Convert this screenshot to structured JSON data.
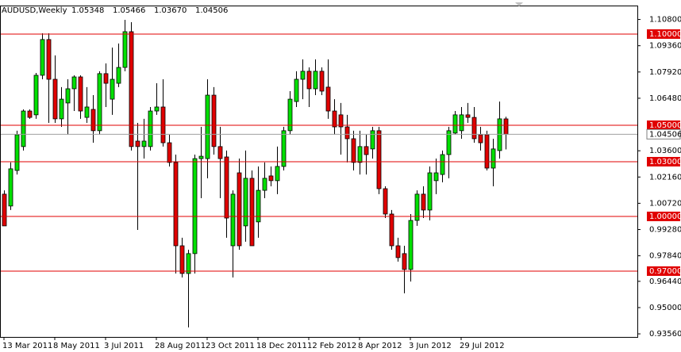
{
  "chart_data": {
    "type": "candlestick",
    "title": "AUDUSD,Weekly",
    "header_values": [
      {
        "value": 1.05348,
        "label": "1.05348"
      },
      {
        "value": 1.05466,
        "label": "1.05466"
      },
      {
        "value": 1.0367,
        "label": "1.03670"
      },
      {
        "value": 1.04506,
        "label": "1.04506"
      }
    ],
    "categories": [
      "13 Mar 2011",
      null,
      null,
      null,
      null,
      null,
      null,
      null,
      "8 May 2011",
      null,
      null,
      null,
      null,
      null,
      null,
      null,
      "3 Jul 2011",
      null,
      null,
      null,
      null,
      null,
      null,
      null,
      "28 Aug 2011",
      null,
      null,
      null,
      null,
      null,
      null,
      null,
      "23 Oct 2011",
      null,
      null,
      null,
      null,
      null,
      null,
      null,
      "18 Dec 2011",
      null,
      null,
      null,
      null,
      null,
      null,
      null,
      "12 Feb 2012",
      null,
      null,
      null,
      null,
      null,
      null,
      null,
      "8 Apr 2012",
      null,
      null,
      null,
      null,
      null,
      null,
      null,
      "3 Jun 2012",
      null,
      null,
      null,
      null,
      null,
      null,
      null,
      "29 Jul 2012",
      null,
      null,
      null,
      null,
      null,
      null,
      null
    ],
    "open": [
      1.0122,
      1.0057,
      1.0252,
      1.0383,
      1.0578,
      1.0557,
      1.0774,
      1.097,
      1.0752,
      1.0535,
      1.0622,
      1.07,
      1.0765,
      1.0543,
      1.0587,
      1.047,
      1.0783,
      1.0643,
      1.073,
      1.0817,
      1.1013,
      1.0413,
      1.0383,
      1.0383,
      1.0578,
      1.06,
      1.0404,
      1.0296,
      0.9839,
      0.9687,
      0.9796,
      1.0317,
      1.0317,
      1.0665,
      1.0383,
      1.0326,
      0.9839,
      1.0239,
      0.9948,
      1.0209,
      0.997,
      1.0143,
      1.0222,
      1.0196,
      1.0274,
      1.047,
      1.063,
      1.0752,
      1.0796,
      1.07,
      1.0796,
      1.0709,
      1.0578,
      1.0557,
      1.0491,
      1.0426,
      1.0296,
      1.0383,
      1.037,
      1.047,
      1.0152,
      1.0013,
      0.9839,
      0.9796,
      0.9709,
      0.9978,
      1.0122,
      1.0035,
      1.0196,
      1.023,
      1.0339,
      1.0457,
      1.047,
      1.0557,
      1.0543,
      1.0448,
      1.0448,
      1.0265,
      1.0361,
      1.05348
    ],
    "high": [
      1.0143,
      1.0296,
      1.047,
      1.0587,
      1.0587,
      1.0787,
      1.1004,
      1.1004,
      1.0883,
      1.0709,
      1.0752,
      1.0774,
      1.0774,
      1.0709,
      1.0665,
      1.0796,
      1.0839,
      1.0926,
      1.0948,
      1.1078,
      1.1065,
      1.0513,
      1.0535,
      1.06,
      1.073,
      1.0752,
      1.0448,
      1.0339,
      0.9883,
      0.9817,
      1.0339,
      1.0491,
      1.0752,
      1.0709,
      1.0491,
      1.0361,
      1.0143,
      1.0317,
      1.0361,
      1.0252,
      1.0274,
      1.0296,
      1.0274,
      1.0383,
      1.0491,
      1.0687,
      1.0796,
      1.0861,
      1.0817,
      1.0861,
      1.0817,
      1.0861,
      1.0643,
      1.0622,
      1.0557,
      1.047,
      1.047,
      1.0448,
      1.0491,
      1.0491,
      1.0165,
      1.0035,
      0.9883,
      0.9839,
      1.0013,
      1.0143,
      1.0165,
      1.0274,
      1.0317,
      1.0361,
      1.0491,
      1.0578,
      1.06,
      1.0622,
      1.06,
      1.0491,
      1.047,
      1.0426,
      1.063,
      1.05466
    ],
    "low": [
      0.9948,
      1.0035,
      1.023,
      1.0361,
      1.0535,
      1.0535,
      1.0752,
      1.0513,
      1.0513,
      1.0491,
      1.0448,
      1.0578,
      1.0535,
      1.0513,
      1.0404,
      1.0448,
      1.06,
      1.0557,
      1.0709,
      1.0796,
      1.0361,
      0.9926,
      1.0317,
      1.0361,
      1.0557,
      1.0383,
      1.0274,
      0.9687,
      0.9665,
      0.9391,
      0.9687,
      1.01,
      1.0209,
      1.0339,
      1.01,
      0.9883,
      0.9665,
      0.9817,
      0.9861,
      0.9839,
      0.9883,
      1.01,
      1.0165,
      1.0122,
      1.0252,
      1.0448,
      1.06,
      1.0643,
      1.06,
      1.0665,
      1.0665,
      1.0535,
      1.0448,
      1.0339,
      1.0296,
      1.0252,
      1.023,
      1.023,
      1.0317,
      1.0122,
      0.9991,
      0.9817,
      0.9752,
      0.9578,
      0.9643,
      0.9948,
      0.9991,
      0.9978,
      1.0122,
      1.0187,
      1.0209,
      1.0448,
      1.0426,
      1.0513,
      1.0404,
      1.0361,
      1.0252,
      1.0165,
      1.0317,
      1.0367
    ],
    "close": [
      0.9948,
      1.0261,
      1.0448,
      1.0578,
      1.0543,
      1.0774,
      1.097,
      1.0752,
      1.0535,
      1.0643,
      1.07,
      1.0765,
      1.0578,
      1.06,
      1.047,
      1.0783,
      1.073,
      1.0752,
      1.0817,
      1.1013,
      1.0383,
      1.0383,
      1.0413,
      1.0578,
      1.06,
      1.0404,
      1.0296,
      0.9839,
      0.9687,
      0.9796,
      1.0317,
      1.033,
      1.0665,
      1.0383,
      1.0317,
      0.9991,
      1.0122,
      0.9839,
      1.0209,
      0.9839,
      1.0143,
      1.0209,
      1.0196,
      1.0274,
      1.047,
      1.0643,
      1.0752,
      1.0796,
      1.07,
      1.0796,
      1.0687,
      1.0578,
      1.0491,
      1.0491,
      1.0426,
      1.0296,
      1.0383,
      1.0339,
      1.047,
      1.0152,
      1.0013,
      0.9839,
      0.9774,
      0.9709,
      0.9978,
      1.0122,
      1.0035,
      1.0239,
      1.0239,
      1.0339,
      1.047,
      1.0557,
      1.0557,
      1.0543,
      1.0426,
      1.0404,
      1.0265,
      1.037,
      1.0535,
      1.04506
    ],
    "up_color": "#00e000",
    "down_color": "#e00000",
    "ylim": [
      0.9339,
      1.1152
    ],
    "yticks": [
      {
        "value": 1.108,
        "label": "1.10800"
      },
      {
        "value": 1.0936,
        "label": "1.09360"
      },
      {
        "value": 1.0792,
        "label": "1.07920"
      },
      {
        "value": 1.0648,
        "label": "1.06480"
      },
      {
        "value": 1.036,
        "label": "1.03600"
      },
      {
        "value": 1.0216,
        "label": "1.02160"
      },
      {
        "value": 1.0072,
        "label": "1.00720"
      },
      {
        "value": 0.9928,
        "label": "0.99280"
      },
      {
        "value": 0.9784,
        "label": "0.97840"
      },
      {
        "value": 0.9644,
        "label": "0.96440"
      },
      {
        "value": 0.95,
        "label": "0.95000"
      },
      {
        "value": 0.9356,
        "label": "0.93560"
      }
    ],
    "levels": [
      {
        "value": 1.1,
        "label": "1.10000"
      },
      {
        "value": 1.05,
        "label": "1.05000"
      },
      {
        "value": 1.03,
        "label": "1.03000"
      },
      {
        "value": 1.0,
        "label": "1.00000"
      },
      {
        "value": 0.97,
        "label": "0.97000"
      }
    ],
    "level_color": "#e00000",
    "last_price": {
      "value": 1.04506,
      "label": "1.04506"
    },
    "grid": false
  }
}
